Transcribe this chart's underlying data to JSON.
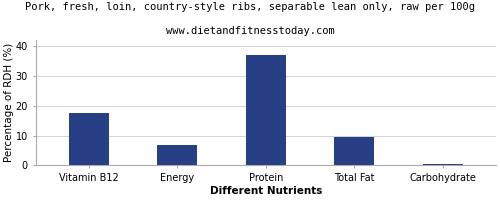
{
  "title": "Pork, fresh, loin, country-style ribs, separable lean only, raw per 100g",
  "subtitle": "www.dietandfitnesstoday.com",
  "categories": [
    "Vitamin B12",
    "Energy",
    "Protein",
    "Total Fat",
    "Carbohydrate"
  ],
  "values": [
    17.5,
    7.0,
    37.0,
    9.5,
    0.5
  ],
  "bar_color": "#273f85",
  "ylabel": "Percentage of RDH (%)",
  "xlabel": "Different Nutrients",
  "ylim": [
    0,
    42
  ],
  "yticks": [
    0,
    10,
    20,
    30,
    40
  ],
  "title_fontsize": 7.5,
  "subtitle_fontsize": 7.5,
  "axis_label_fontsize": 7.5,
  "tick_fontsize": 7,
  "background_color": "#ffffff",
  "plot_bg_color": "#ffffff",
  "grid_color": "#cccccc"
}
